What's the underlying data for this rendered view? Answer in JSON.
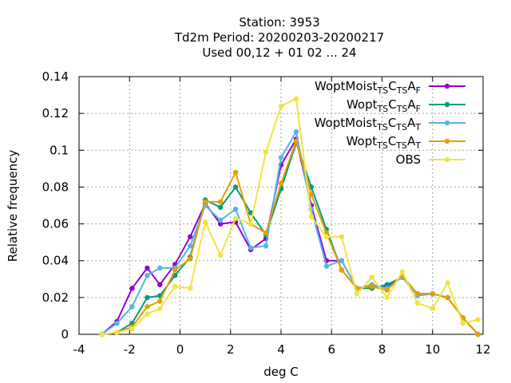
{
  "chart_data": {
    "type": "line",
    "title_lines": [
      "Station:     3953",
      "Td2m  Period: 20200203-20200217",
      "Used  00,12  + 01 02 ... 24"
    ],
    "xlabel": "deg C",
    "ylabel": "Relative frequency",
    "xlim": [
      -4,
      12
    ],
    "ylim": [
      0,
      0.14
    ],
    "xticks": [
      -4,
      -2,
      0,
      2,
      4,
      6,
      8,
      10,
      12
    ],
    "yticks": [
      0,
      0.02,
      0.04,
      0.06,
      0.08,
      0.1,
      0.12,
      0.14
    ],
    "xtick_labels": [
      "-4",
      "-2",
      "0",
      "2",
      "4",
      "6",
      "8",
      "10",
      "12"
    ],
    "ytick_labels": [
      "0",
      "0.02",
      "0.04",
      "0.06",
      "0.08",
      "0.1",
      "0.12",
      "0.14"
    ],
    "grid": true,
    "legend_placement": "top-right",
    "x": [
      -3.1,
      -2.5,
      -1.9,
      -1.3,
      -0.8,
      -0.2,
      0.4,
      1.0,
      1.6,
      2.2,
      2.8,
      3.4,
      4.0,
      4.6,
      5.2,
      5.8,
      6.4,
      7.0,
      7.6,
      8.2,
      8.8,
      9.4,
      10.0,
      10.6,
      11.2,
      11.8
    ],
    "series": [
      {
        "name_main": "WoptMoist",
        "name_parts": [
          [
            "WoptMoist",
            ""
          ],
          [
            "TS",
            "sub"
          ],
          [
            "C",
            ""
          ],
          [
            "TS",
            "sub"
          ],
          [
            "A",
            ""
          ],
          [
            "F",
            "sub"
          ]
        ],
        "color": "#9400d3",
        "values": [
          0.0,
          0.007,
          0.025,
          0.036,
          0.027,
          0.038,
          0.053,
          0.071,
          0.06,
          0.061,
          0.046,
          0.052,
          0.092,
          0.106,
          0.07,
          0.04,
          0.04,
          0.025,
          0.026,
          0.026,
          0.031,
          0.022,
          0.022,
          0.02,
          0.009,
          0.0
        ]
      },
      {
        "name_main": "Wopt",
        "name_parts": [
          [
            "Wopt",
            ""
          ],
          [
            "TS",
            "sub"
          ],
          [
            "C",
            ""
          ],
          [
            "TS",
            "sub"
          ],
          [
            "A",
            ""
          ],
          [
            "F",
            "sub"
          ]
        ],
        "color": "#009e73",
        "values": [
          0.0,
          0.001,
          0.006,
          0.02,
          0.021,
          0.032,
          0.042,
          0.073,
          0.069,
          0.08,
          0.066,
          0.054,
          0.079,
          0.104,
          0.08,
          0.057,
          0.035,
          0.025,
          0.025,
          0.027,
          0.031,
          0.022,
          0.022,
          0.02,
          0.009,
          0.0
        ]
      },
      {
        "name_main": "WoptMoist",
        "name_parts": [
          [
            "WoptMoist",
            ""
          ],
          [
            "TS",
            "sub"
          ],
          [
            "C",
            ""
          ],
          [
            "TS",
            "sub"
          ],
          [
            "A",
            ""
          ],
          [
            "T",
            "sub"
          ]
        ],
        "color": "#56b4e9",
        "values": [
          0.0,
          0.006,
          0.015,
          0.032,
          0.036,
          0.036,
          0.048,
          0.07,
          0.062,
          0.068,
          0.047,
          0.048,
          0.096,
          0.11,
          0.068,
          0.037,
          0.04,
          0.025,
          0.027,
          0.025,
          0.031,
          0.021,
          0.022,
          0.02,
          0.009,
          0.0
        ]
      },
      {
        "name_main": "Wopt",
        "name_parts": [
          [
            "Wopt",
            ""
          ],
          [
            "TS",
            "sub"
          ],
          [
            "C",
            ""
          ],
          [
            "TS",
            "sub"
          ],
          [
            "A",
            ""
          ],
          [
            "T",
            "sub"
          ]
        ],
        "color": "#e69f00",
        "values": [
          0.0,
          0.001,
          0.004,
          0.015,
          0.018,
          0.035,
          0.041,
          0.072,
          0.072,
          0.088,
          0.06,
          0.055,
          0.082,
          0.105,
          0.076,
          0.055,
          0.035,
          0.025,
          0.026,
          0.024,
          0.032,
          0.022,
          0.022,
          0.02,
          0.009,
          0.0
        ]
      },
      {
        "name_main": "OBS",
        "name_parts": [
          [
            "OBS",
            ""
          ]
        ],
        "color": "#f0e442",
        "values": [
          0.0,
          0.001,
          0.003,
          0.011,
          0.014,
          0.026,
          0.025,
          0.061,
          0.043,
          0.063,
          0.06,
          0.099,
          0.124,
          0.128,
          0.064,
          0.053,
          0.053,
          0.022,
          0.031,
          0.02,
          0.034,
          0.017,
          0.014,
          0.028,
          0.006,
          0.008
        ]
      }
    ]
  }
}
